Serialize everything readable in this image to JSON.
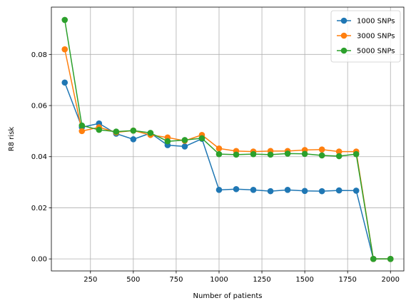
{
  "chart_data": {
    "type": "line",
    "title": "",
    "xlabel": "Number of patients",
    "ylabel": "R8 risk",
    "xlim": [
      22,
      2078
    ],
    "ylim": [
      -0.0047,
      0.0985
    ],
    "xticks": [
      250,
      500,
      750,
      1000,
      1250,
      1500,
      1750,
      2000
    ],
    "yticks": [
      0.0,
      0.02,
      0.04,
      0.06,
      0.08
    ],
    "ytick_labels": [
      "0.00",
      "0.02",
      "0.04",
      "0.06",
      "0.08"
    ],
    "grid": true,
    "legend_position": "top-right",
    "x": [
      100,
      200,
      300,
      400,
      500,
      600,
      700,
      800,
      900,
      1000,
      1100,
      1200,
      1300,
      1400,
      1500,
      1600,
      1700,
      1800,
      1900,
      2000
    ],
    "series": [
      {
        "name": "1000 SNPs",
        "color": "#1f77b4",
        "values": [
          0.069,
          0.0515,
          0.053,
          0.049,
          0.0468,
          0.0492,
          0.0445,
          0.044,
          0.047,
          0.027,
          0.0273,
          0.027,
          0.0265,
          0.027,
          0.0266,
          0.0265,
          0.0268,
          0.0267,
          0.0,
          0.0
        ]
      },
      {
        "name": "3000 SNPs",
        "color": "#ff7f0e",
        "values": [
          0.082,
          0.05,
          0.0515,
          0.0495,
          0.0502,
          0.0485,
          0.0475,
          0.0462,
          0.0485,
          0.0432,
          0.0422,
          0.042,
          0.0422,
          0.0422,
          0.0426,
          0.0428,
          0.042,
          0.042,
          0.0,
          0.0
        ]
      },
      {
        "name": "5000 SNPs",
        "color": "#2ca02c",
        "values": [
          0.0935,
          0.0522,
          0.0505,
          0.0498,
          0.0502,
          0.0493,
          0.046,
          0.0465,
          0.0472,
          0.041,
          0.0408,
          0.041,
          0.0408,
          0.0412,
          0.0411,
          0.0405,
          0.0402,
          0.041,
          0.0,
          0.0
        ]
      }
    ]
  }
}
